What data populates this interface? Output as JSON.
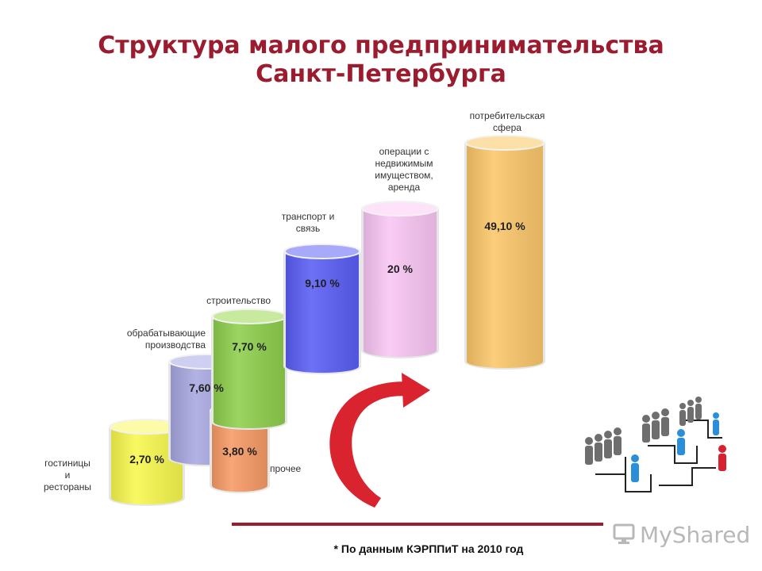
{
  "title": {
    "line1": "Структура малого предпринимательства",
    "line2": "Санкт-Петербурга"
  },
  "chart_data": {
    "type": "bar",
    "style": "3d-cylinder",
    "unit": "%",
    "categories": [
      [
        "гостиницы",
        "и",
        "рестораны"
      ],
      [
        "обрабатывающие",
        "производства"
      ],
      [
        "прочее"
      ],
      [
        "строительство"
      ],
      [
        "транспорт и",
        "связь"
      ],
      [
        "операции с",
        "недвижимым",
        "имуществом,",
        "аренда"
      ],
      [
        "потребительская",
        "сфера"
      ]
    ],
    "values": [
      2.7,
      7.6,
      3.8,
      7.7,
      9.1,
      20,
      49.1
    ],
    "value_labels": [
      "2,70 %",
      "7,60 %",
      "3,80 %",
      "7,70 %",
      "9,10 %",
      "20 %",
      "49,10 %"
    ],
    "colors": [
      "#f7f84e",
      "#a7a7e0",
      "#f79a66",
      "#8ecf4c",
      "#5a5ef5",
      "#f9c6f4",
      "#fbc76a"
    ],
    "top_colors": [
      "#fbfba8",
      "#cfcff2",
      "#fbc4a4",
      "#c7ea9f",
      "#a7a9fb",
      "#fde2fa",
      "#fde0a8"
    ]
  },
  "footnote": "* По данным КЭРППиТ на 2010 год",
  "watermark": "MyShared",
  "icons": {
    "arrow": "curved-arrow-icon",
    "people": "business-people-icon",
    "watermark": "monitor-icon"
  }
}
